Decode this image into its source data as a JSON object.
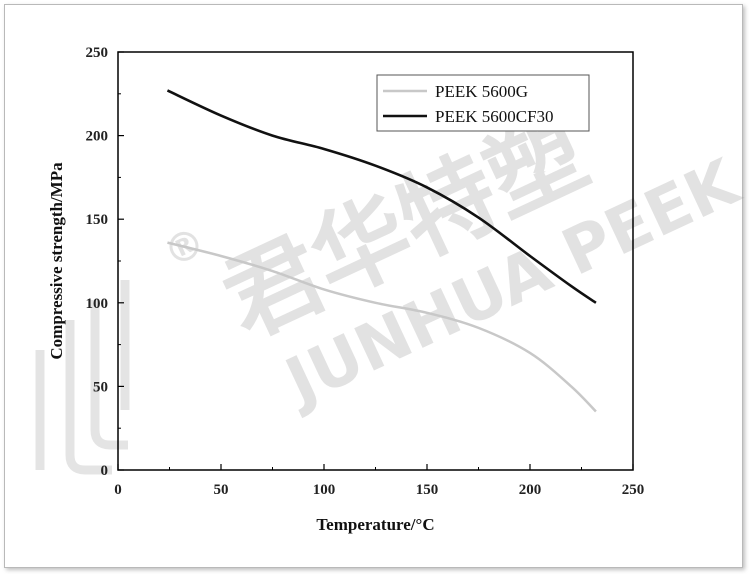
{
  "watermark": {
    "cn": "君华特塑",
    "en": "JUNHUA PEEK",
    "reg": "®"
  },
  "chart_data": {
    "type": "line",
    "xlabel": "Temperature/°C",
    "ylabel": "Compressive strength/MPa",
    "xlim": [
      0,
      250
    ],
    "ylim": [
      0,
      250
    ],
    "xticks": [
      0,
      50,
      100,
      150,
      200,
      250
    ],
    "yticks": [
      0,
      50,
      100,
      150,
      200,
      250
    ],
    "grid": false,
    "legend_position": "top-right",
    "series": [
      {
        "name": "PEEK 5600G",
        "color": "#c8c8c8",
        "x": [
          24,
          50,
          75,
          100,
          125,
          150,
          175,
          200,
          220,
          232
        ],
        "y": [
          136,
          128,
          119,
          108,
          100,
          94,
          85,
          70,
          50,
          35
        ]
      },
      {
        "name": "PEEK 5600CF30",
        "color": "#111111",
        "x": [
          24,
          50,
          75,
          100,
          125,
          150,
          175,
          200,
          220,
          232
        ],
        "y": [
          227,
          212,
          200,
          192,
          182,
          169,
          151,
          128,
          110,
          100
        ]
      }
    ]
  }
}
